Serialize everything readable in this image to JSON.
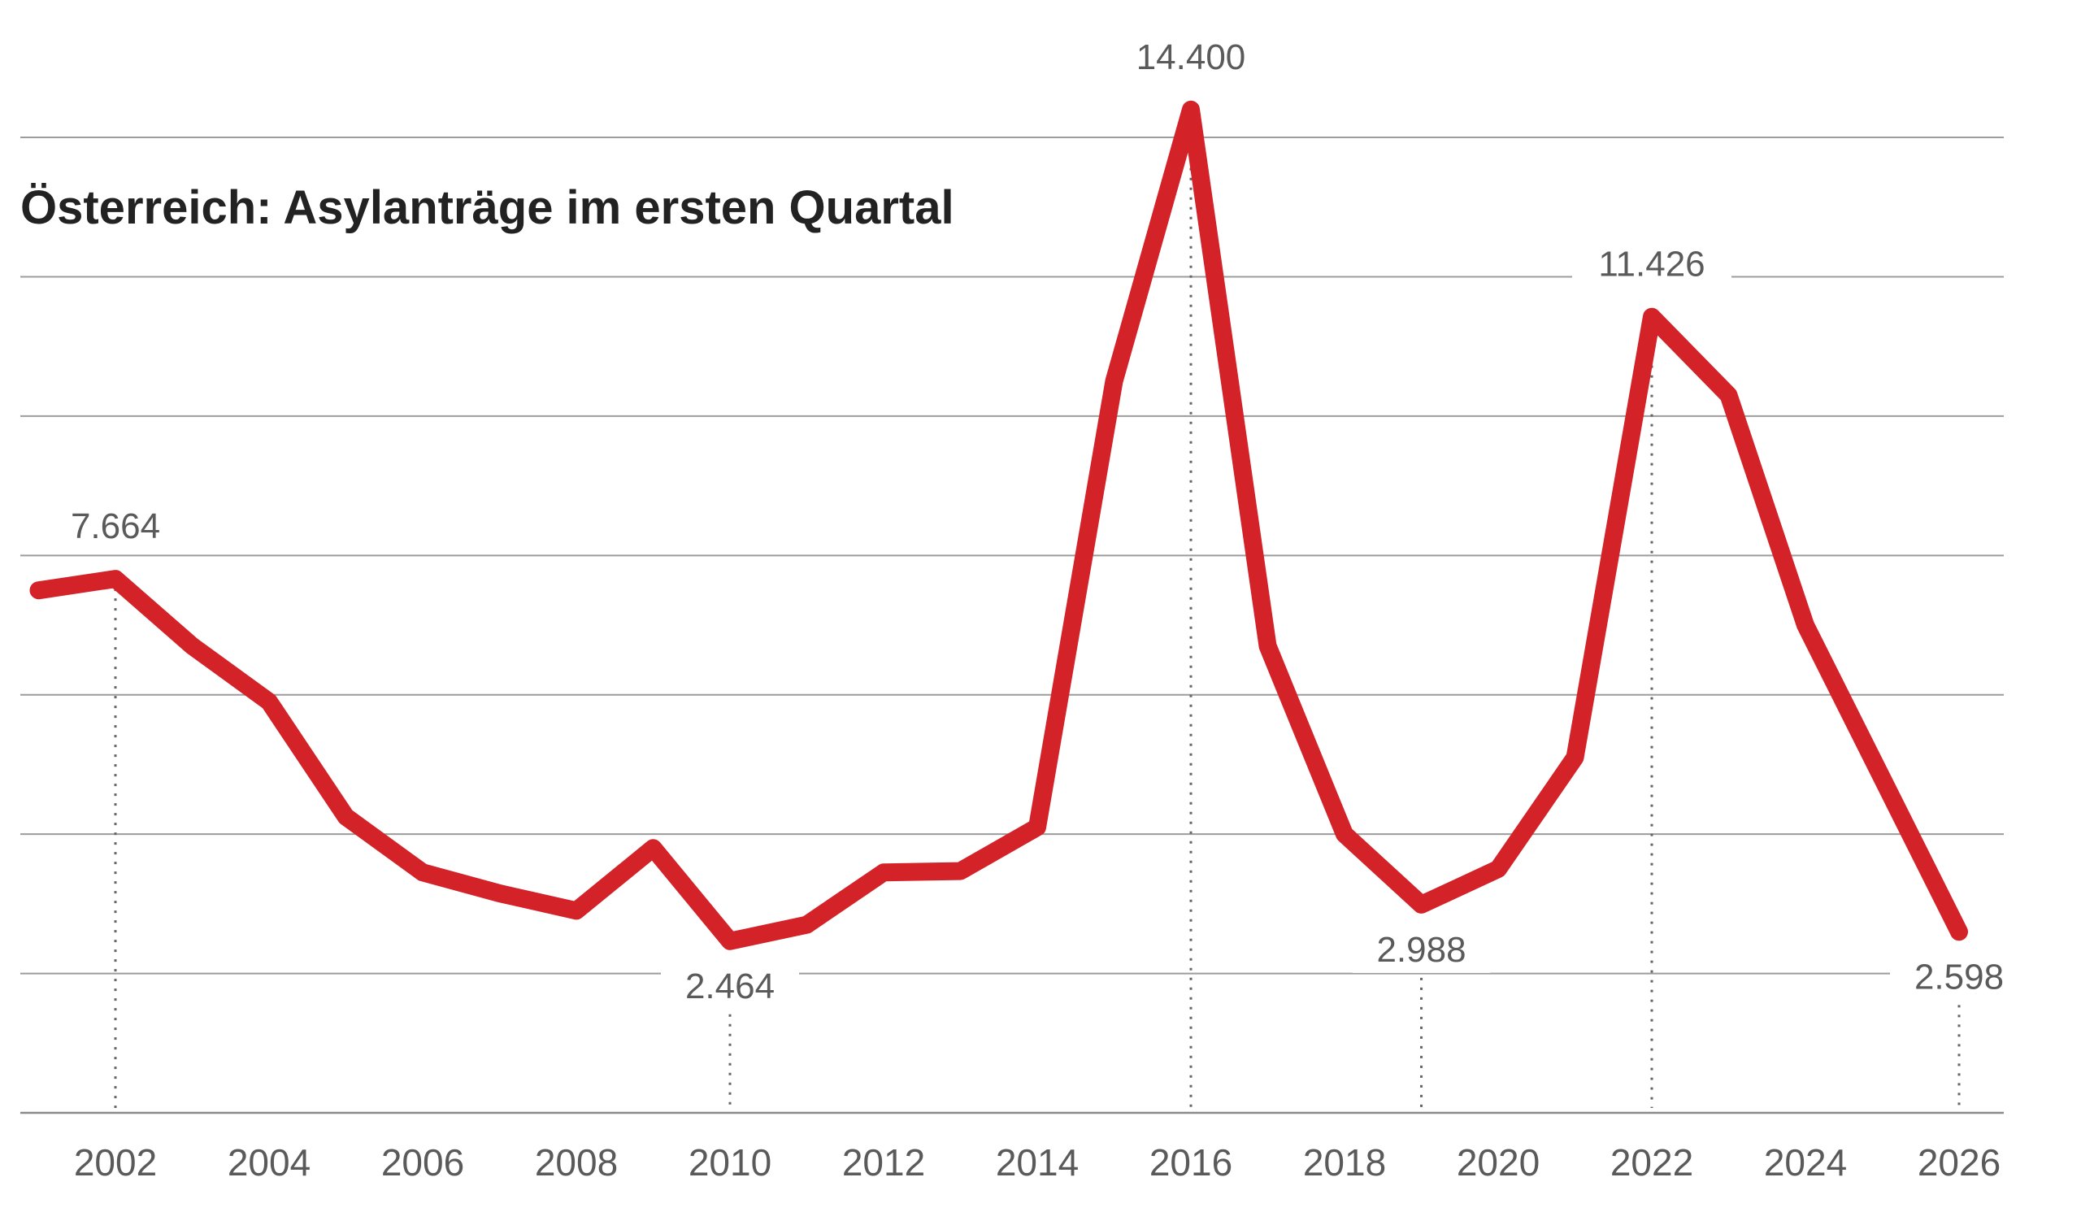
{
  "chart_data": {
    "type": "line",
    "title": "Österreich: Asylanträge im ersten Quartal",
    "xlabel": "",
    "ylabel": "",
    "grid": true,
    "xlim": [
      2001,
      2026
    ],
    "ylim": [
      0,
      14000
    ],
    "x_ticks": [
      "2002",
      "2004",
      "2006",
      "2008",
      "2010",
      "2012",
      "2014",
      "2016",
      "2018",
      "2020",
      "2022",
      "2024",
      "2026"
    ],
    "y_gridlines": [
      0,
      2000,
      4000,
      6000,
      8000,
      10000,
      12000,
      14000
    ],
    "color": "#d42229",
    "series": [
      {
        "x": [
          2001,
          2002,
          2003,
          2004,
          2005,
          2006,
          2007,
          2008,
          2009,
          2010,
          2011,
          2012,
          2013,
          2014,
          2015,
          2016,
          2017,
          2018,
          2019,
          2020,
          2021,
          2022,
          2023,
          2024,
          2025,
          2026
        ],
        "values": [
          7500,
          7664,
          6700,
          5900,
          4250,
          3450,
          3150,
          2900,
          3800,
          2464,
          2700,
          3450,
          3470,
          4100,
          10500,
          14400,
          6700,
          4000,
          2988,
          3500,
          5100,
          11426,
          10300,
          7000,
          4800,
          2598
        ]
      }
    ],
    "annotations": [
      {
        "x": 2002,
        "value": 7664,
        "label": "7.664",
        "position": "above"
      },
      {
        "x": 2010,
        "value": 2464,
        "label": "2.464",
        "position": "below"
      },
      {
        "x": 2016,
        "value": 14400,
        "label": "14.400",
        "position": "above"
      },
      {
        "x": 2019,
        "value": 2988,
        "label": "2.988",
        "position": "below"
      },
      {
        "x": 2022,
        "value": 11426,
        "label": "11.426",
        "position": "above"
      },
      {
        "x": 2026,
        "value": 2598,
        "label": "2.598",
        "position": "below"
      }
    ]
  }
}
